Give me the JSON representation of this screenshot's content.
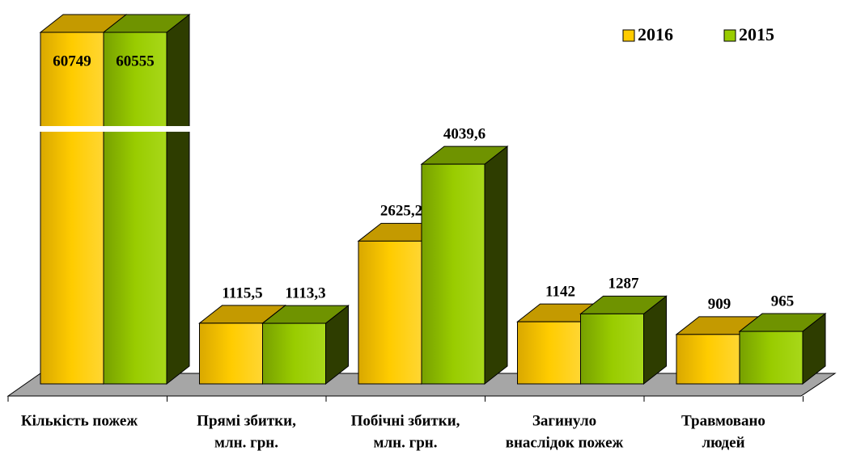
{
  "chart_data": {
    "type": "bar3d",
    "categories": [
      [
        "Кількість пожеж"
      ],
      [
        "Прямі збитки,",
        "млн. грн."
      ],
      [
        "Побічні збитки,",
        "млн. грн."
      ],
      [
        "Загинуло",
        "внаслідок пожеж"
      ],
      [
        "Травмовано",
        "людей"
      ]
    ],
    "series": [
      {
        "name": "2016",
        "color": "#ffcc00",
        "values": [
          60749,
          1115.5,
          2625.2,
          1142,
          909
        ],
        "value_labels": [
          "60749",
          "1115,5",
          "2625,2",
          "1142",
          "909"
        ]
      },
      {
        "name": "2015",
        "color": "#99cc00",
        "values": [
          60555,
          1113.3,
          4039.6,
          1287,
          965
        ],
        "value_labels": [
          "60555",
          "1113,3",
          "4039,6",
          "1287",
          "965"
        ]
      }
    ],
    "axis_break": true,
    "legend": "top-right"
  }
}
